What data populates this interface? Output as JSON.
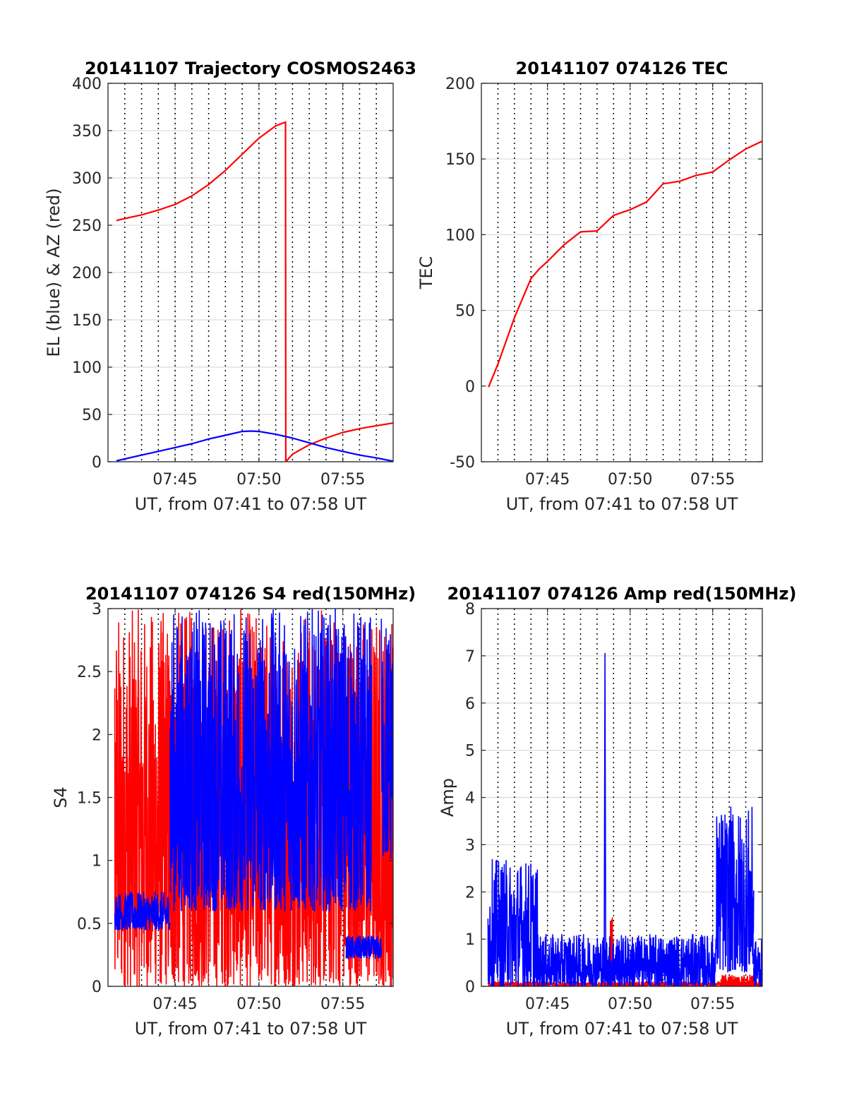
{
  "chart_data": [
    {
      "type": "line",
      "title": "20141107 Trajectory COSMOS2463",
      "xlabel": "UT, from 07:41 to 07:58 UT",
      "ylabel": "EL (blue) & AZ (red)",
      "xlim": [
        7.6833,
        7.9667
      ],
      "ylim": [
        0,
        400
      ],
      "yticks": [
        0,
        50,
        100,
        150,
        200,
        250,
        300,
        350,
        400
      ],
      "xticks": [
        "07:45",
        "07:50",
        "07:55"
      ],
      "grid": "on",
      "series": [
        {
          "color": "#ff0000",
          "x": [
            "07:41:30",
            "07:42",
            "07:43",
            "07:44",
            "07:45",
            "07:46",
            "07:47",
            "07:48",
            "07:49",
            "07:50",
            "07:51",
            "07:51:35",
            "07:51:36",
            "07:52",
            "07:53",
            "07:54",
            "07:55",
            "07:56",
            "07:57",
            "07:58"
          ],
          "y": [
            255,
            257,
            261,
            266,
            272,
            281,
            293,
            308,
            325,
            342,
            355,
            359,
            0,
            8,
            18,
            25,
            31,
            35,
            38,
            41
          ]
        },
        {
          "color": "#0000ff",
          "x": [
            "07:41:30",
            "07:42",
            "07:43",
            "07:44",
            "07:45",
            "07:46",
            "07:47",
            "07:48",
            "07:49",
            "07:49:30",
            "07:50",
            "07:51",
            "07:52",
            "07:53",
            "07:54",
            "07:55",
            "07:56",
            "07:57",
            "07:58"
          ],
          "y": [
            1,
            3,
            7,
            11,
            15,
            19,
            24,
            28,
            32,
            32.5,
            32,
            29,
            25,
            20,
            15,
            11,
            7,
            4,
            0.5
          ]
        }
      ]
    },
    {
      "type": "line",
      "title": "20141107 074126 TEC",
      "xlabel": "UT, from 07:41 to 07:58 UT",
      "ylabel": "TEC",
      "xlim": [
        7.6833,
        7.9667
      ],
      "ylim": [
        -50,
        200
      ],
      "yticks": [
        -50,
        0,
        50,
        100,
        150,
        200
      ],
      "xticks": [
        "07:45",
        "07:50",
        "07:55"
      ],
      "grid": "on",
      "series": [
        {
          "color": "#ff0000",
          "x": [
            "07:41:26",
            "07:42",
            "07:43",
            "07:44",
            "07:44:30",
            "07:45",
            "07:46",
            "07:47",
            "07:48",
            "07:49",
            "07:50",
            "07:51",
            "07:52",
            "07:53",
            "07:54",
            "07:55",
            "07:56",
            "07:57",
            "07:58"
          ],
          "y": [
            -1,
            15,
            45,
            70,
            77,
            82,
            94,
            101,
            102,
            112,
            116,
            122,
            133,
            136,
            139,
            142,
            150,
            156,
            161
          ]
        }
      ]
    },
    {
      "type": "line",
      "title": "20141107 074126 S4 red(150MHz)",
      "xlabel": "UT, from 07:41 to 07:58 UT",
      "ylabel": "S4",
      "xlim": [
        7.6833,
        7.9667
      ],
      "ylim": [
        0,
        3
      ],
      "yticks": [
        0,
        0.5,
        1,
        1.5,
        2,
        2.5,
        3
      ],
      "xticks": [
        "07:45",
        "07:50",
        "07:55"
      ],
      "grid": "on",
      "series": [
        {
          "color": "#ff0000",
          "mode": "noisy",
          "segments": [
            [
              7.69,
              7.975,
              0,
              3
            ]
          ]
        },
        {
          "color": "#0000ff",
          "mode": "noisy",
          "segments": [
            [
              7.69,
              7.745,
              0.45,
              0.75
            ],
            [
              7.745,
              7.945,
              0.6,
              3
            ],
            [
              7.92,
              7.955,
              0.22,
              0.4
            ],
            [
              7.955,
              7.9667,
              1.0,
              3
            ]
          ]
        }
      ]
    },
    {
      "type": "line",
      "title": "20141107 074126 Amp red(150MHz)",
      "xlabel": "UT, from 07:41 to 07:58 UT",
      "ylabel": "Amp",
      "xlim": [
        7.6833,
        7.9667
      ],
      "ylim": [
        0,
        8
      ],
      "yticks": [
        0,
        1,
        2,
        3,
        4,
        5,
        6,
        7,
        8
      ],
      "xticks": [
        "07:45",
        "07:50",
        "07:55"
      ],
      "grid": "on",
      "series": [
        {
          "color": "#ff0000",
          "mode": "noisy",
          "segments": [
            [
              7.69,
              7.9667,
              0,
              0.1
            ],
            [
              7.8135,
              7.8165,
              0.3,
              1.5
            ],
            [
              7.925,
              7.958,
              0,
              0.25
            ]
          ]
        },
        {
          "color": "#0000ff",
          "mode": "noisy",
          "segments": [
            [
              7.69,
              7.74,
              0,
              2.7
            ],
            [
              7.74,
              7.92,
              0,
              1.1
            ],
            [
              7.92,
              7.958,
              0.3,
              3.8
            ],
            [
              7.958,
              7.9667,
              0,
              1.0
            ]
          ],
          "spike": [
            7.808,
            7.05
          ]
        }
      ]
    }
  ]
}
